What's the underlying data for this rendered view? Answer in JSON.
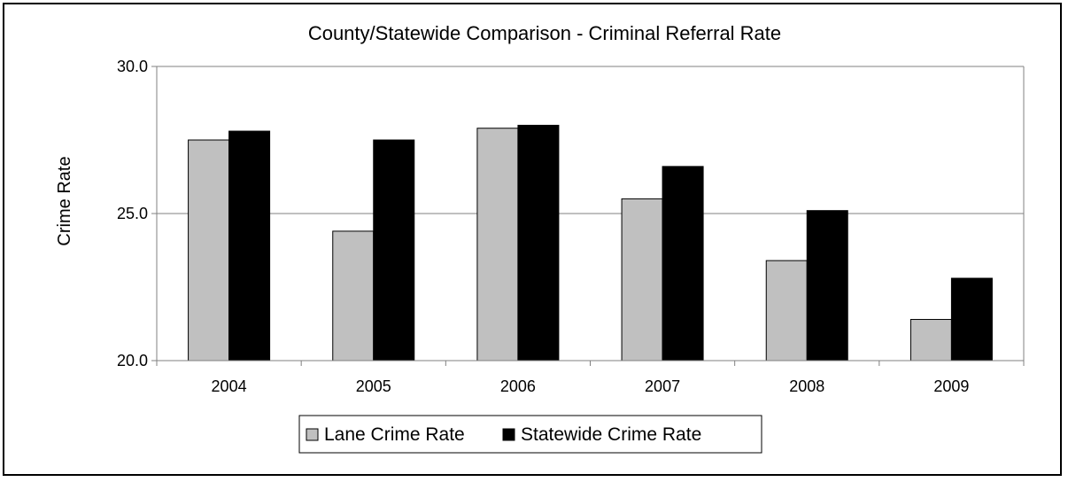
{
  "colors": {
    "lane": "#c0c0c0",
    "statewide": "#000000",
    "grid": "#808080",
    "axis": "#808080",
    "background": "#ffffff"
  },
  "chart_data": {
    "type": "bar",
    "title": "County/Statewide Comparison - Criminal Referral Rate",
    "xlabel": "",
    "ylabel": "Crime Rate",
    "categories": [
      "2004",
      "2005",
      "2006",
      "2007",
      "2008",
      "2009"
    ],
    "series": [
      {
        "name": "Lane Crime Rate",
        "values": [
          27.5,
          24.4,
          27.9,
          25.5,
          23.4,
          21.4
        ]
      },
      {
        "name": "Statewide Crime Rate",
        "values": [
          27.8,
          27.5,
          28.0,
          26.6,
          25.1,
          22.8
        ]
      }
    ],
    "ylim": [
      20,
      30
    ],
    "yticks": [
      "20.0",
      "25.0",
      "30.0"
    ],
    "grid": true,
    "legend_position": "bottom"
  }
}
